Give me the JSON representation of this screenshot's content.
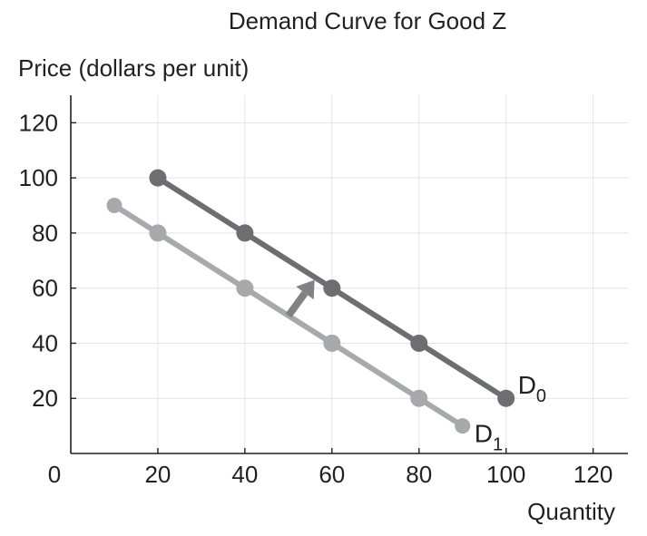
{
  "chart_data": {
    "type": "line",
    "title": "Demand Curve for Good Z",
    "ylabel": "Price (dollars per unit)",
    "xlabel": "Quantity",
    "xlim": [
      0,
      128
    ],
    "ylim": [
      0,
      130
    ],
    "x_ticks": [
      20,
      40,
      60,
      80,
      100,
      120
    ],
    "y_ticks": [
      20,
      40,
      60,
      80,
      100,
      120
    ],
    "origin_label": "0",
    "grid": true,
    "series": [
      {
        "name": "D0",
        "label_main": "D",
        "label_sub": "0",
        "color": "#6d6e71",
        "x": [
          20,
          40,
          60,
          80,
          100
        ],
        "y": [
          100,
          80,
          60,
          40,
          20
        ]
      },
      {
        "name": "D1",
        "label_main": "D",
        "label_sub": "1",
        "color": "#a7a9ac",
        "x": [
          10,
          20,
          40,
          60,
          80,
          90
        ],
        "y": [
          90,
          80,
          60,
          40,
          20,
          10
        ]
      }
    ],
    "annotations": [
      {
        "type": "arrow",
        "color": "#808285",
        "from": [
          50,
          50
        ],
        "to": [
          56,
          63
        ]
      }
    ]
  }
}
